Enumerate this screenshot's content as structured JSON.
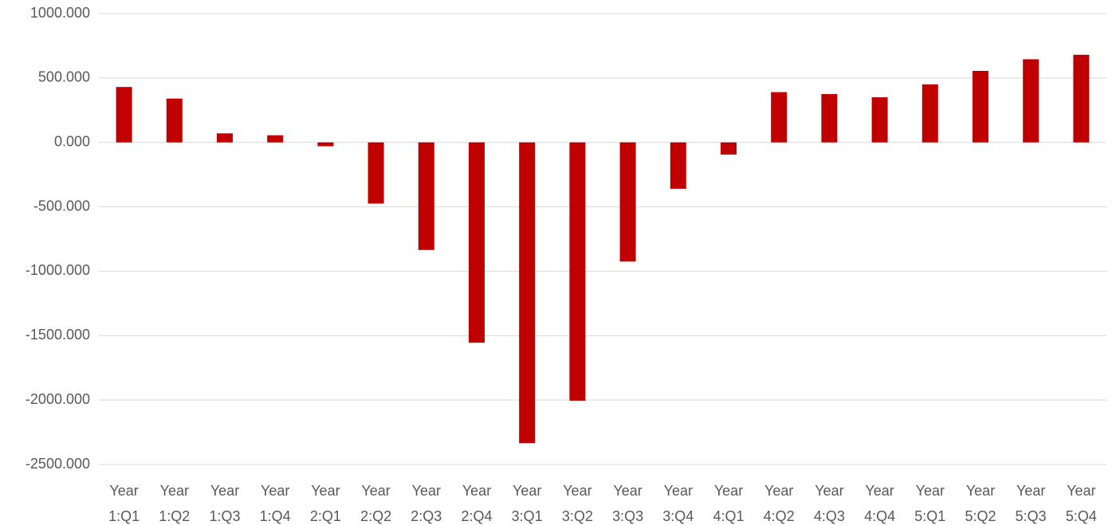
{
  "chart_data": {
    "type": "bar",
    "categories": [
      "Year 1:Q1",
      "Year 1:Q2",
      "Year 1:Q3",
      "Year 1:Q4",
      "Year 2:Q1",
      "Year 2:Q2",
      "Year 2:Q3",
      "Year 2:Q4",
      "Year 3:Q1",
      "Year 3:Q2",
      "Year 3:Q3",
      "Year 3:Q4",
      "Year 4:Q1",
      "Year 4:Q2",
      "Year 4:Q3",
      "Year 4:Q4",
      "Year 5:Q1",
      "Year 5:Q2",
      "Year 5:Q3",
      "Year 5:Q4"
    ],
    "values": [
      430,
      340,
      70,
      55,
      -30,
      -475,
      -835,
      -1555,
      -2335,
      -2005,
      -925,
      -360,
      -95,
      390,
      375,
      350,
      450,
      555,
      645,
      680
    ],
    "color": "#c00000",
    "ylim": [
      -2500,
      1000
    ],
    "yticks": [
      {
        "value": -2500,
        "label": "-2500.000"
      },
      {
        "value": -2000,
        "label": "-2000.000"
      },
      {
        "value": -1500,
        "label": "-1500.000"
      },
      {
        "value": -1000,
        "label": "-1000.000"
      },
      {
        "value": -500,
        "label": "-500.000"
      },
      {
        "value": 0,
        "label": "0.000"
      },
      {
        "value": 500,
        "label": "500.000"
      },
      {
        "value": 1000,
        "label": "1000.000"
      }
    ],
    "grid": true
  }
}
